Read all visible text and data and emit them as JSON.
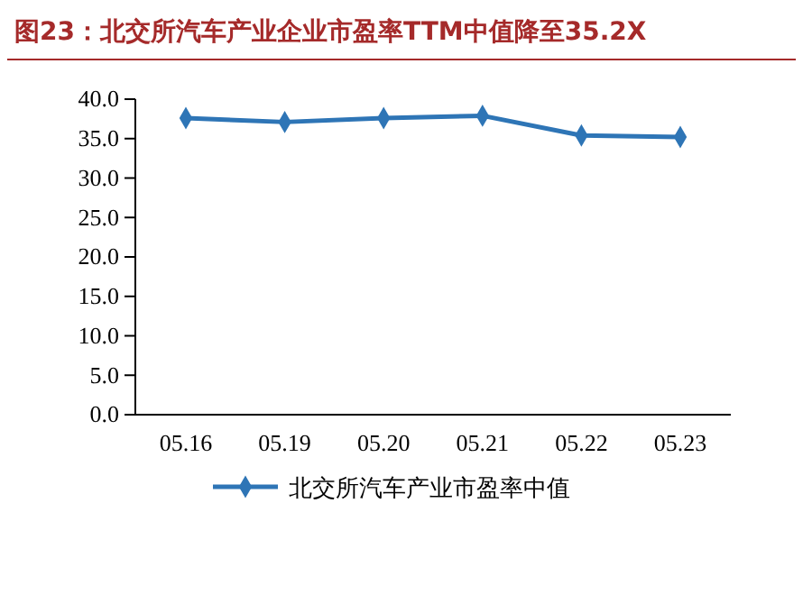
{
  "chart_data": {
    "type": "line",
    "title": "图23：北交所汽车产业企业市盈率TTM中值降至35.2X",
    "categories": [
      "05.16",
      "05.19",
      "05.20",
      "05.21",
      "05.22",
      "05.23"
    ],
    "series": [
      {
        "name": "北交所汽车产业市盈率中值",
        "color": "#2e75b6",
        "values": [
          37.6,
          37.1,
          37.6,
          37.9,
          35.4,
          35.2
        ]
      }
    ],
    "ylim": [
      0,
      40
    ],
    "yticks": [
      {
        "value": 0,
        "label": "0.0"
      },
      {
        "value": 5,
        "label": "5.0"
      },
      {
        "value": 10,
        "label": "10.0"
      },
      {
        "value": 15,
        "label": "15.0"
      },
      {
        "value": 20,
        "label": "20.0"
      },
      {
        "value": 25,
        "label": "25.0"
      },
      {
        "value": 30,
        "label": "30.0"
      },
      {
        "value": 35,
        "label": "35.0"
      },
      {
        "value": 40,
        "label": "40.0"
      }
    ],
    "grid": false,
    "legend": "bottom",
    "marker": "diamond",
    "line_style": "solid"
  }
}
